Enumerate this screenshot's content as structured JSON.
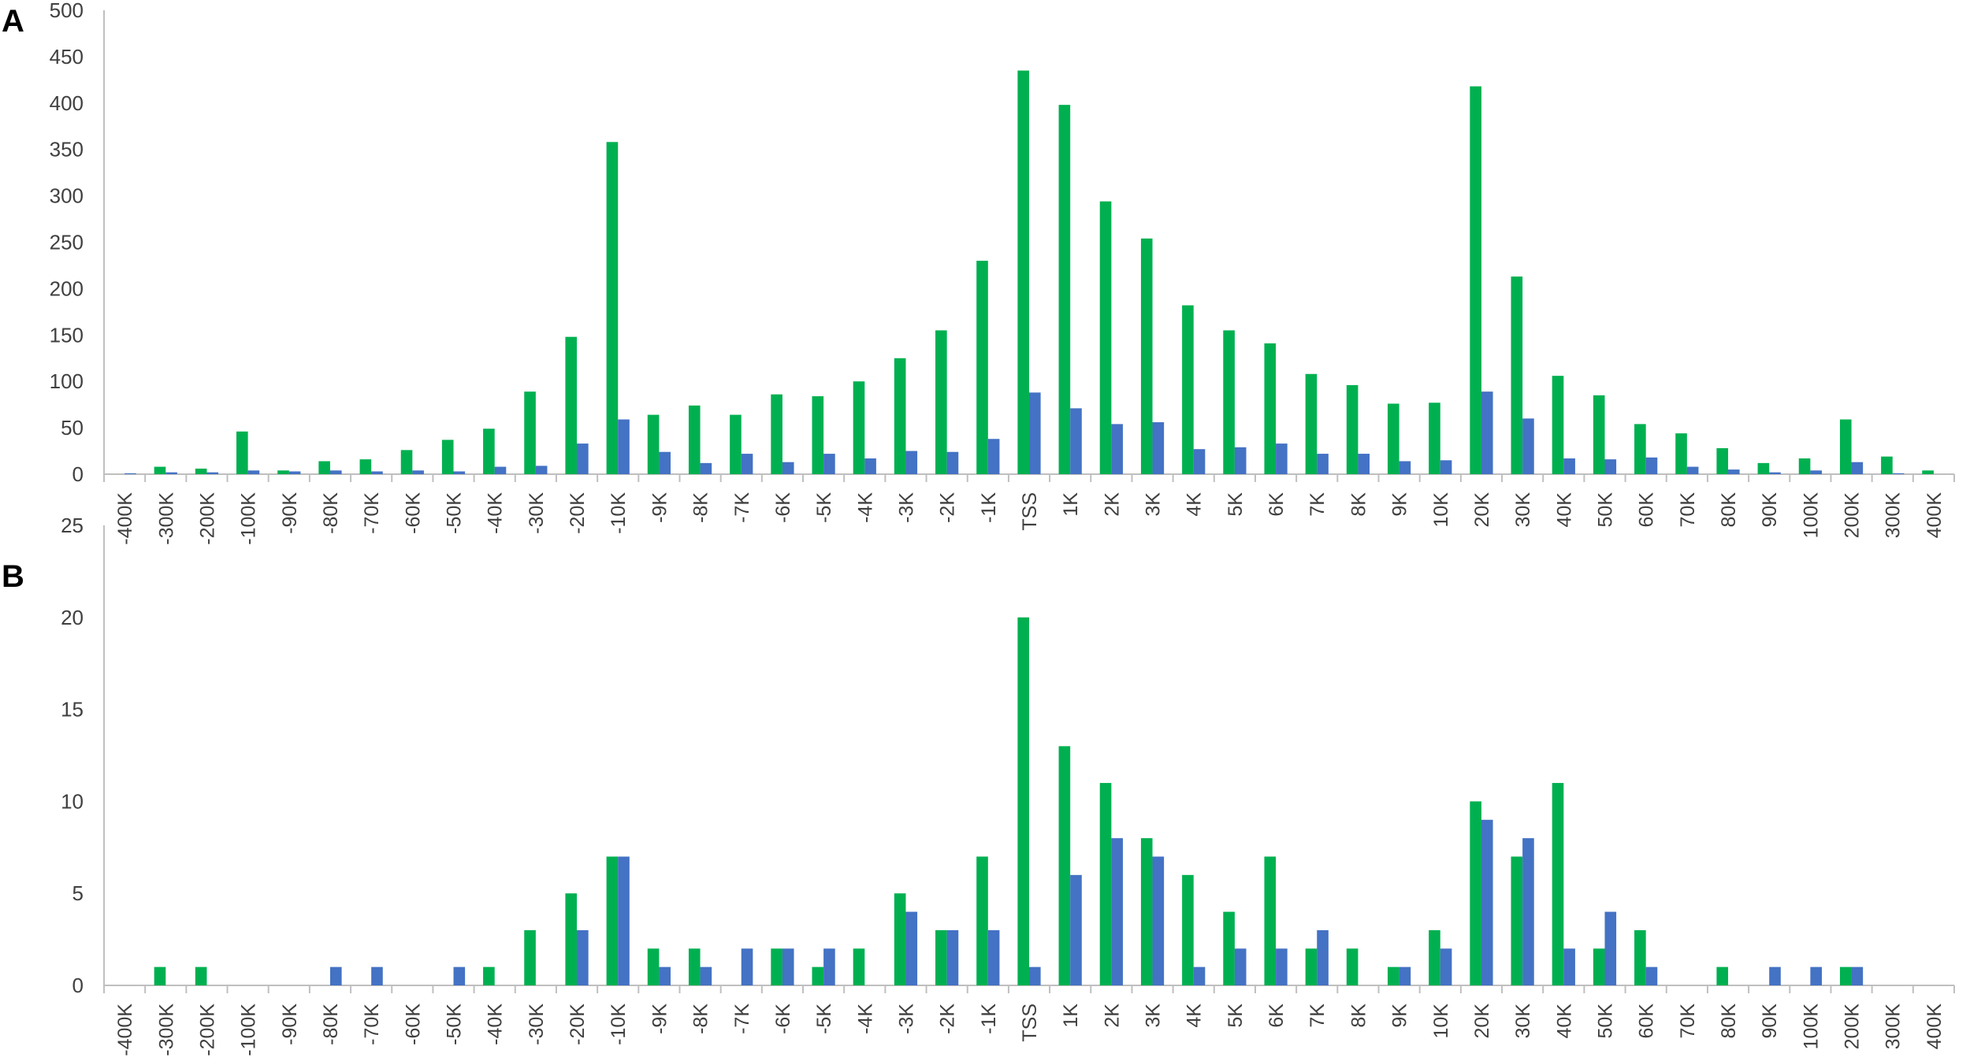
{
  "colors": {
    "series1": "#00b050",
    "series2": "#4472c4",
    "axis": "#bfbfbf",
    "text": "#404040"
  },
  "chart_data": [
    {
      "type": "bar",
      "panel": "A",
      "title": "",
      "xlabel": "",
      "ylabel": "",
      "ylim": [
        0,
        500
      ],
      "yticks": [
        0,
        50,
        100,
        150,
        200,
        250,
        300,
        350,
        400,
        450,
        500
      ],
      "grid": false,
      "categories": [
        "-400K",
        "-300K",
        "-200K",
        "-100K",
        "-90K",
        "-80K",
        "-70K",
        "-60K",
        "-50K",
        "-40K",
        "-30K",
        "-20K",
        "-10K",
        "-9K",
        "-8K",
        "-7K",
        "-6K",
        "-5K",
        "-4K",
        "-3K",
        "-2K",
        "-1K",
        "TSS",
        "1K",
        "2K",
        "3K",
        "4K",
        "5K",
        "6K",
        "7K",
        "8K",
        "9K",
        "10K",
        "20K",
        "30K",
        "40K",
        "50K",
        "60K",
        "70K",
        "80K",
        "90K",
        "100K",
        "200K",
        "300K",
        "400K"
      ],
      "series": [
        {
          "values": [
            0,
            8,
            6,
            46,
            4,
            14,
            16,
            26,
            37,
            49,
            89,
            148,
            358,
            64,
            74,
            64,
            86,
            84,
            100,
            125,
            155,
            230,
            435,
            398,
            294,
            254,
            182,
            155,
            141,
            108,
            96,
            76,
            77,
            418,
            213,
            106,
            85,
            54,
            44,
            28,
            12,
            17,
            59,
            19,
            4
          ]
        },
        {
          "values": [
            1,
            2,
            2,
            4,
            3,
            4,
            3,
            4,
            3,
            8,
            9,
            33,
            59,
            24,
            12,
            22,
            13,
            22,
            17,
            25,
            24,
            38,
            88,
            71,
            54,
            56,
            27,
            29,
            33,
            22,
            22,
            14,
            15,
            89,
            60,
            17,
            16,
            18,
            8,
            5,
            2,
            4,
            13,
            1,
            0
          ]
        }
      ]
    },
    {
      "type": "bar",
      "panel": "B",
      "title": "",
      "xlabel": "",
      "ylabel": "",
      "ylim": [
        0,
        25
      ],
      "yticks": [
        0,
        5,
        10,
        15,
        20,
        25
      ],
      "grid": false,
      "categories": [
        "-400K",
        "-300K",
        "-200K",
        "-100K",
        "-90K",
        "-80K",
        "-70K",
        "-60K",
        "-50K",
        "-40K",
        "-30K",
        "-20K",
        "-10K",
        "-9K",
        "-8K",
        "-7K",
        "-6K",
        "-5K",
        "-4K",
        "-3K",
        "-2K",
        "-1K",
        "TSS",
        "1K",
        "2K",
        "3K",
        "4K",
        "5K",
        "6K",
        "7K",
        "8K",
        "9K",
        "10K",
        "20K",
        "30K",
        "40K",
        "50K",
        "60K",
        "70K",
        "80K",
        "90K",
        "100K",
        "200K",
        "300K",
        "400K"
      ],
      "series": [
        {
          "values": [
            0,
            1,
            1,
            0,
            0,
            0,
            0,
            0,
            0,
            1,
            3,
            5,
            7,
            2,
            2,
            0,
            2,
            1,
            2,
            5,
            3,
            7,
            20,
            13,
            11,
            8,
            6,
            4,
            7,
            2,
            2,
            1,
            3,
            10,
            7,
            11,
            2,
            3,
            0,
            1,
            0,
            0,
            1,
            0,
            0
          ]
        },
        {
          "values": [
            0,
            0,
            0,
            0,
            0,
            1,
            1,
            0,
            1,
            0,
            0,
            3,
            7,
            1,
            1,
            2,
            2,
            2,
            0,
            4,
            3,
            3,
            1,
            6,
            8,
            7,
            1,
            2,
            2,
            3,
            0,
            1,
            2,
            9,
            8,
            2,
            4,
            1,
            0,
            0,
            1,
            1,
            1,
            0,
            0
          ]
        }
      ]
    }
  ],
  "panels": [
    {
      "label": "A"
    },
    {
      "label": "B"
    }
  ]
}
